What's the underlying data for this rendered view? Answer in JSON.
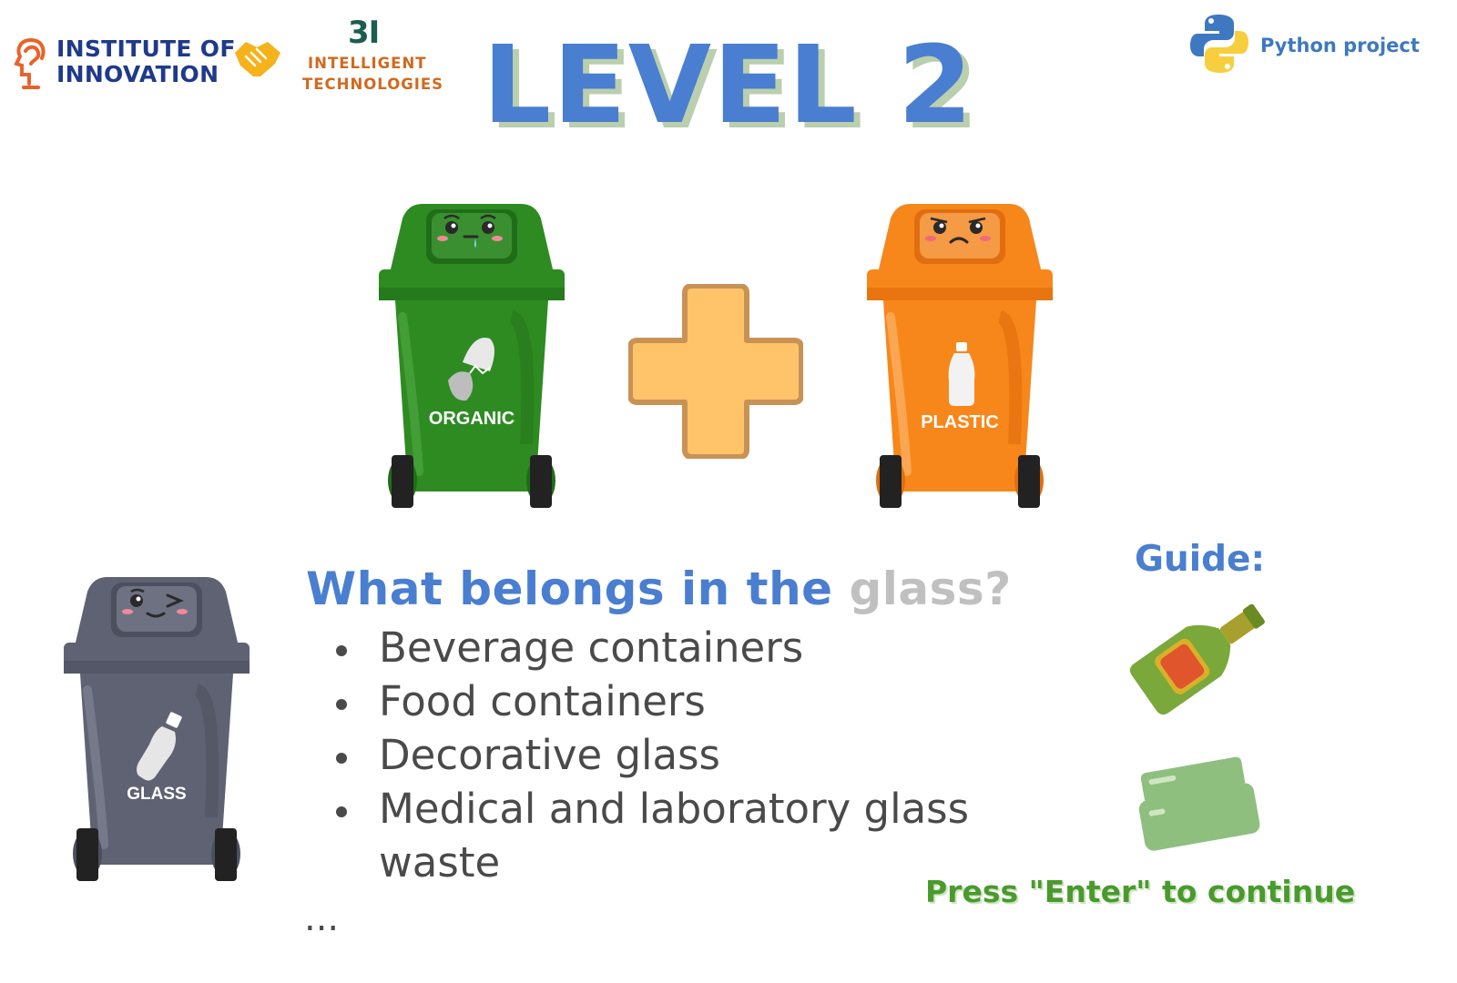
{
  "header": {
    "institute_line1": "INSTITUTE OF",
    "institute_line2": "INNOVATION",
    "it_number": "3I",
    "it_line1": "INTELLIGENT",
    "it_line2": "TECHNOLOGIES",
    "level_title": "LEVEL 2",
    "python_label": "Python project"
  },
  "bins": {
    "organic": {
      "label": "ORGANIC",
      "color": "#2e8b22"
    },
    "plastic": {
      "label": "PLASTIC",
      "color": "#f7871b"
    },
    "glass": {
      "label": "GLASS",
      "color": "#5f6272"
    }
  },
  "question": {
    "prefix": "What belongs in the ",
    "highlight": "glass?"
  },
  "items": [
    "Beverage containers",
    "Food containers",
    "Decorative glass",
    "Medical and laboratory glass waste"
  ],
  "ellipsis": "...",
  "guide": {
    "title": "Guide:",
    "icons": [
      "bottle-icon",
      "jar-icon"
    ]
  },
  "continue_prompt": "Press \"Enter\" to continue"
}
